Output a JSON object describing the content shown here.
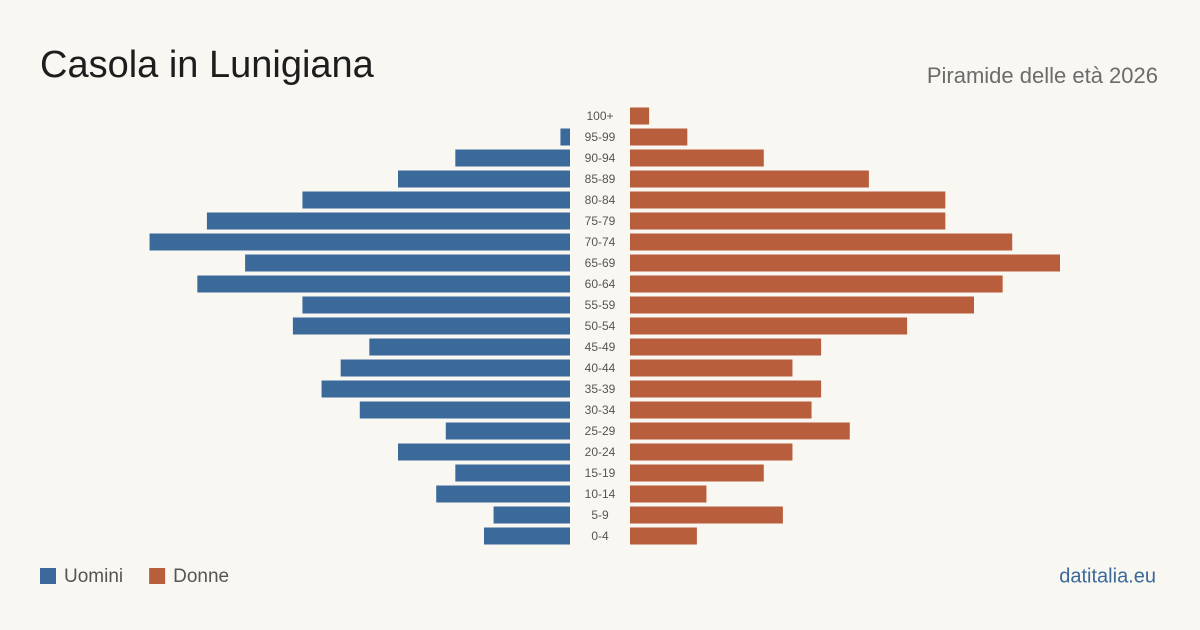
{
  "chart_data": {
    "type": "pyramid",
    "title": "Casola in Lunigiana",
    "subtitle": "Piramide delle età 2026",
    "source": "datitalia.eu",
    "categories": [
      "100+",
      "95-99",
      "90-94",
      "85-89",
      "80-84",
      "75-79",
      "70-74",
      "65-69",
      "60-64",
      "55-59",
      "50-54",
      "45-49",
      "40-44",
      "35-39",
      "30-34",
      "25-29",
      "20-24",
      "15-19",
      "10-14",
      "5-9",
      "0-4"
    ],
    "series": [
      {
        "name": "Uomini",
        "color": "#3b6a9a",
        "values": [
          0,
          1,
          12,
          18,
          28,
          38,
          44,
          34,
          39,
          28,
          29,
          21,
          24,
          26,
          22,
          13,
          18,
          12,
          14,
          8,
          9
        ]
      },
      {
        "name": "Donne",
        "color": "#b95e3d",
        "values": [
          2,
          6,
          14,
          25,
          33,
          33,
          40,
          45,
          39,
          36,
          29,
          20,
          17,
          20,
          19,
          23,
          17,
          14,
          8,
          16,
          7
        ]
      }
    ]
  }
}
